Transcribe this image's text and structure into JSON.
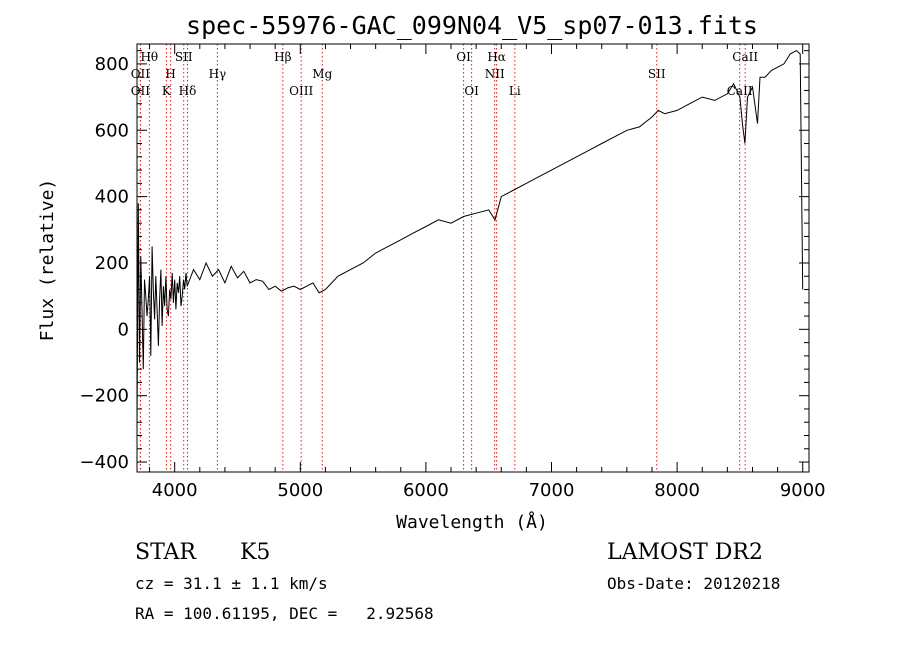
{
  "chart_data": {
    "type": "line",
    "title": "spec-55976-GAC_099N04_V5_sp07-013.fits",
    "xlabel": "Wavelength (Å)",
    "ylabel": "Flux (relative)",
    "xlim": [
      3700,
      9050
    ],
    "ylim": [
      -430,
      860
    ],
    "xticks": [
      4000,
      5000,
      6000,
      7000,
      8000,
      9000
    ],
    "yticks": [
      -400,
      -200,
      0,
      200,
      400,
      600,
      800
    ],
    "grid": false,
    "series": [
      {
        "x": [
          3700,
          3710,
          3720,
          3730,
          3740,
          3750,
          3760,
          3770,
          3780,
          3790,
          3800,
          3810,
          3820,
          3830,
          3840,
          3850,
          3860,
          3870,
          3880,
          3890,
          3900,
          3910,
          3920,
          3930,
          3940,
          3950,
          3960,
          3970,
          3980,
          3990,
          4000,
          4010,
          4020,
          4030,
          4040,
          4050,
          4060,
          4070,
          4080,
          4090,
          4100,
          4150,
          4200,
          4250,
          4300,
          4350,
          4400,
          4450,
          4500,
          4550,
          4600,
          4650,
          4700,
          4750,
          4800,
          4850,
          4900,
          4950,
          5000,
          5050,
          5100,
          5150,
          5200,
          5250,
          5300,
          5400,
          5500,
          5600,
          5700,
          5800,
          5900,
          6000,
          6100,
          6200,
          6300,
          6400,
          6500,
          6550,
          6600,
          6700,
          6800,
          6900,
          7000,
          7100,
          7200,
          7300,
          7400,
          7500,
          7600,
          7700,
          7800,
          7850,
          7900,
          8000,
          8100,
          8200,
          8300,
          8400,
          8450,
          8500,
          8520,
          8540,
          8560,
          8600,
          8640,
          8660,
          8700,
          8750,
          8800,
          8850,
          8900,
          8950,
          8980,
          9000
        ],
        "y": [
          -300,
          380,
          -100,
          220,
          60,
          -120,
          150,
          100,
          40,
          90,
          160,
          -80,
          250,
          120,
          30,
          160,
          60,
          -50,
          90,
          180,
          10,
          130,
          70,
          160,
          60,
          40,
          120,
          90,
          170,
          80,
          150,
          60,
          140,
          110,
          160,
          70,
          100,
          150,
          120,
          170,
          130,
          180,
          150,
          200,
          160,
          180,
          140,
          190,
          155,
          175,
          140,
          150,
          145,
          120,
          130,
          115,
          125,
          130,
          120,
          130,
          140,
          110,
          120,
          140,
          160,
          180,
          200,
          230,
          250,
          270,
          290,
          310,
          330,
          320,
          340,
          350,
          360,
          330,
          400,
          420,
          440,
          460,
          480,
          500,
          520,
          540,
          560,
          580,
          600,
          610,
          640,
          660,
          650,
          660,
          680,
          700,
          690,
          710,
          740,
          700,
          620,
          560,
          700,
          730,
          620,
          760,
          760,
          780,
          790,
          800,
          830,
          840,
          830,
          120
        ]
      }
    ],
    "spectral_lines": [
      {
        "label": "Hθ",
        "x": 3798,
        "row": 1
      },
      {
        "label": "OII",
        "x": 3727,
        "row": 2
      },
      {
        "label": "H",
        "x": 3968,
        "row": 2
      },
      {
        "label": "SII",
        "x": 4072,
        "row": 1
      },
      {
        "label": "OII",
        "x": 3727,
        "row": 3
      },
      {
        "label": "K",
        "x": 3934,
        "row": 3
      },
      {
        "label": "Hδ",
        "x": 4102,
        "row": 3
      },
      {
        "label": "Hγ",
        "x": 4340,
        "row": 2
      },
      {
        "label": "Hβ",
        "x": 4861,
        "row": 1
      },
      {
        "label": "OIII",
        "x": 5007,
        "row": 3
      },
      {
        "label": "Mg",
        "x": 5175,
        "row": 2
      },
      {
        "label": "OI",
        "x": 6300,
        "row": 1
      },
      {
        "label": "OI",
        "x": 6364,
        "row": 3
      },
      {
        "label": "Hα",
        "x": 6563,
        "row": 1
      },
      {
        "label": "NII",
        "x": 6548,
        "row": 2
      },
      {
        "label": "Li",
        "x": 6708,
        "row": 3
      },
      {
        "label": "SII",
        "x": 7838,
        "row": 2
      },
      {
        "label": "CaII",
        "x": 8542,
        "row": 1
      },
      {
        "label": "CaII",
        "x": 8498,
        "row": 3
      }
    ],
    "line_color": "#000000",
    "marker_color": "#cc2222"
  },
  "info": {
    "class_label": "STAR",
    "subclass": "K5",
    "survey": "LAMOST DR2",
    "cz": "cz = 31.1 ± 1.1 km/s",
    "obs_date": "Obs-Date: 20120218",
    "radec": "RA = 100.61195, DEC =   2.92568"
  }
}
